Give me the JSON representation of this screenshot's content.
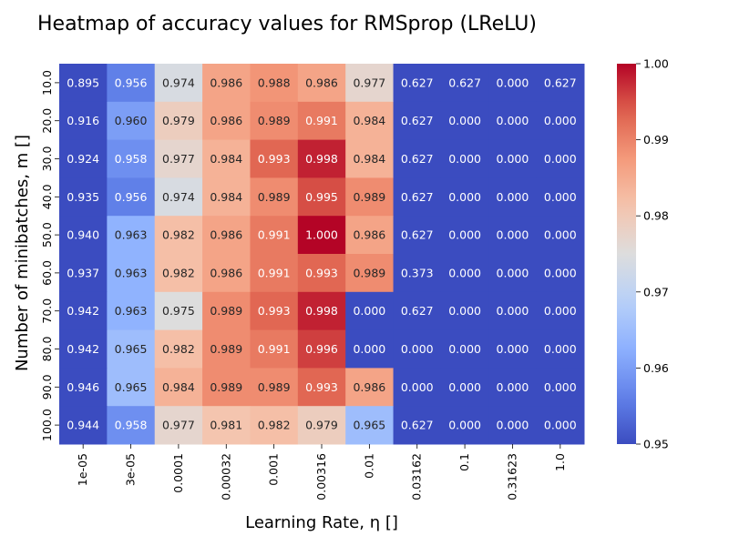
{
  "chart_data": {
    "type": "heatmap",
    "title": "Heatmap of accuracy values for RMSprop (LReLU)",
    "xlabel": "Learning Rate, η []",
    "ylabel": "Number of minibatches, m []",
    "x_categories": [
      "1e-05",
      "3e-05",
      "0.0001",
      "0.00032",
      "0.001",
      "0.00316",
      "0.01",
      "0.03162",
      "0.1",
      "0.31623",
      "1.0"
    ],
    "y_categories": [
      "10.0",
      "20.0",
      "30.0",
      "40.0",
      "50.0",
      "60.0",
      "70.0",
      "80.0",
      "90.0",
      "100.0"
    ],
    "values": [
      [
        0.895,
        0.956,
        0.974,
        0.986,
        0.988,
        0.986,
        0.977,
        0.627,
        0.627,
        0.0,
        0.627
      ],
      [
        0.916,
        0.96,
        0.979,
        0.986,
        0.989,
        0.991,
        0.984,
        0.627,
        0.0,
        0.0,
        0.0
      ],
      [
        0.924,
        0.958,
        0.977,
        0.984,
        0.993,
        0.998,
        0.984,
        0.627,
        0.0,
        0.0,
        0.0
      ],
      [
        0.935,
        0.956,
        0.974,
        0.984,
        0.989,
        0.995,
        0.989,
        0.627,
        0.0,
        0.0,
        0.0
      ],
      [
        0.94,
        0.963,
        0.982,
        0.986,
        0.991,
        1.0,
        0.986,
        0.627,
        0.0,
        0.0,
        0.0
      ],
      [
        0.937,
        0.963,
        0.982,
        0.986,
        0.991,
        0.993,
        0.989,
        0.373,
        0.0,
        0.0,
        0.0
      ],
      [
        0.942,
        0.963,
        0.975,
        0.989,
        0.993,
        0.998,
        0.0,
        0.627,
        0.0,
        0.0,
        0.0
      ],
      [
        0.942,
        0.965,
        0.982,
        0.989,
        0.991,
        0.996,
        0.0,
        0.0,
        0.0,
        0.0,
        0.0
      ],
      [
        0.946,
        0.965,
        0.984,
        0.989,
        0.989,
        0.993,
        0.986,
        0.0,
        0.0,
        0.0,
        0.0
      ],
      [
        0.944,
        0.958,
        0.977,
        0.981,
        0.982,
        0.979,
        0.965,
        0.627,
        0.0,
        0.0,
        0.0
      ]
    ],
    "colormap": "coolwarm",
    "vmin": 0.95,
    "vmax": 1.0,
    "colorbar_ticks": [
      "0.95",
      "0.96",
      "0.97",
      "0.98",
      "0.99",
      "1.00"
    ],
    "grid": false
  }
}
